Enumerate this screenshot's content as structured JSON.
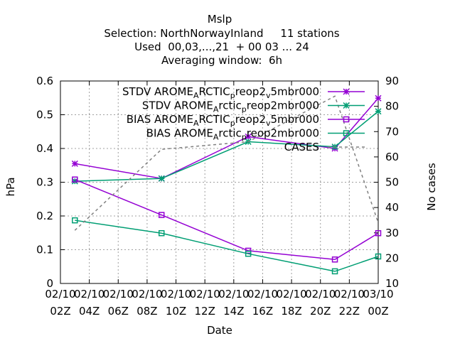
{
  "chart_data": {
    "type": "line",
    "title_lines": [
      "Mslp",
      "Selection: NorthNorwayInland     11 stations",
      "Used  00,03,...,21  + 00 03 ... 24",
      "Averaging window:  6h"
    ],
    "xlabel": "Date",
    "ylabel": "hPa",
    "y2label": "No cases",
    "x_ticks": [
      [
        "02/10",
        "02Z"
      ],
      [
        "02/10",
        "04Z"
      ],
      [
        "02/10",
        "06Z"
      ],
      [
        "02/10",
        "08Z"
      ],
      [
        "02/10",
        "10Z"
      ],
      [
        "02/10",
        "12Z"
      ],
      [
        "02/10",
        "14Z"
      ],
      [
        "02/10",
        "16Z"
      ],
      [
        "02/10",
        "18Z"
      ],
      [
        "02/10",
        "20Z"
      ],
      [
        "02/10",
        "22Z"
      ],
      [
        "03/10",
        "00Z"
      ]
    ],
    "xlim": [
      2,
      24
    ],
    "ylim": [
      0,
      0.6
    ],
    "y_ticks": [
      "0",
      "0.1",
      "0.2",
      "0.3",
      "0.4",
      "0.5",
      "0.6"
    ],
    "y2lim": [
      10,
      90
    ],
    "y2_ticks": [
      "10",
      "20",
      "30",
      "40",
      "50",
      "60",
      "70",
      "80",
      "90"
    ],
    "grid": true,
    "legend_position": "top-right",
    "series": [
      {
        "name": "STDV AROME_ARCTIC_preop2_v5mbr000",
        "label_parts": [
          [
            "STDV AROME",
            "n"
          ],
          [
            "A",
            "sub"
          ],
          [
            "RCTIC",
            "n"
          ],
          [
            "p",
            "sub"
          ],
          [
            "reop2",
            "n"
          ],
          [
            "v",
            "sub"
          ],
          [
            "5mbr000",
            "n"
          ]
        ],
        "color": "#9400d3",
        "marker": "asterisk",
        "axis": "y",
        "x": [
          3,
          9,
          15,
          21,
          24
        ],
        "y": [
          0.355,
          0.311,
          0.435,
          0.4,
          0.549
        ]
      },
      {
        "name": "STDV AROME_Arctic_preop2mbr000",
        "label_parts": [
          [
            "STDV AROME",
            "n"
          ],
          [
            "A",
            "sub"
          ],
          [
            "rctic",
            "n"
          ],
          [
            "p",
            "sub"
          ],
          [
            "reop2mbr000",
            "n"
          ]
        ],
        "color": "#009e73",
        "marker": "asterisk",
        "axis": "y",
        "x": [
          3,
          9,
          15,
          21,
          24
        ],
        "y": [
          0.303,
          0.311,
          0.42,
          0.405,
          0.51
        ]
      },
      {
        "name": "BIAS AROME_ARCTIC_preop2_v5mbr000",
        "label_parts": [
          [
            "BIAS AROME",
            "n"
          ],
          [
            "A",
            "sub"
          ],
          [
            "RCTIC",
            "n"
          ],
          [
            "p",
            "sub"
          ],
          [
            "reop2",
            "n"
          ],
          [
            "v",
            "sub"
          ],
          [
            "5mbr000",
            "n"
          ]
        ],
        "color": "#9400d3",
        "marker": "square",
        "axis": "y",
        "x": [
          3,
          9,
          15,
          21,
          24
        ],
        "y": [
          0.308,
          0.203,
          0.097,
          0.071,
          0.149
        ]
      },
      {
        "name": "BIAS AROME_Arctic_preop2mbr000",
        "label_parts": [
          [
            "BIAS AROME",
            "n"
          ],
          [
            "A",
            "sub"
          ],
          [
            "rctic",
            "n"
          ],
          [
            "p",
            "sub"
          ],
          [
            "reop2mbr000",
            "n"
          ]
        ],
        "color": "#009e73",
        "marker": "square",
        "axis": "y",
        "x": [
          3,
          9,
          15,
          21,
          24
        ],
        "y": [
          0.187,
          0.149,
          0.088,
          0.036,
          0.08
        ]
      },
      {
        "name": "CASES",
        "label_parts": [
          [
            "CASES",
            "n"
          ]
        ],
        "color": "#808080",
        "marker": "none",
        "dashed": true,
        "axis": "y2",
        "x": [
          3,
          9,
          15,
          21,
          24
        ],
        "y": [
          31,
          63,
          66,
          84,
          34
        ]
      }
    ]
  }
}
